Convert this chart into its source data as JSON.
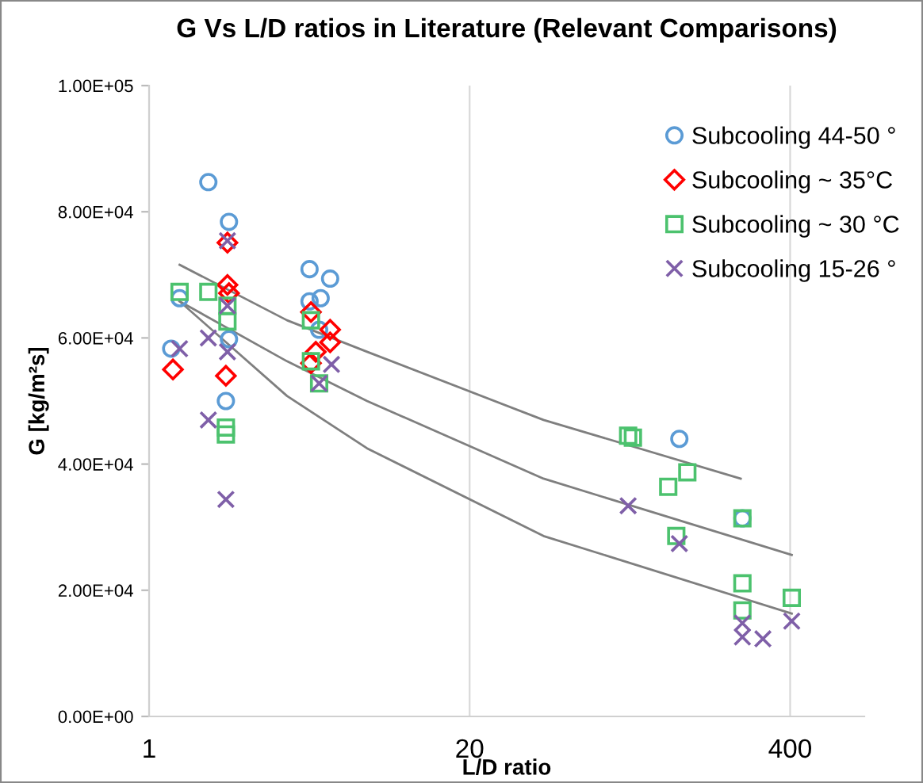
{
  "chart_data": {
    "type": "scatter",
    "title": "G Vs L/D ratios in Literature (Relevant Comparisons)",
    "xlabel": "L/D ratio",
    "ylabel": "G [kg/m²s]",
    "log": "x",
    "grid": "x",
    "legend": "top right",
    "xlim": [
      1,
      800
    ],
    "xticks": [
      1,
      20,
      400
    ],
    "ylim": [
      0,
      100000
    ],
    "yticks": [
      {
        "value": 0,
        "label": "0.00E+00"
      },
      {
        "value": 20000,
        "label": "2.00E+04"
      },
      {
        "value": 40000,
        "label": "4.00E+04"
      },
      {
        "value": 60000,
        "label": "6.00E+04"
      },
      {
        "value": 80000,
        "label": "8.00E+04"
      },
      {
        "value": 100000,
        "label": "1.00E+05"
      }
    ],
    "series": [
      {
        "name": "Subcooling 44-50 °",
        "color": "#5b9bd5",
        "marker": "circle",
        "x": [
          1.74,
          2.11,
          1.33,
          1.23,
          2.11,
          2.05,
          4.48,
          5.43,
          4.48,
          4.97,
          4.9,
          142,
          256
        ],
        "values": [
          84700,
          78400,
          66300,
          58300,
          59800,
          50000,
          70900,
          69400,
          65800,
          66300,
          61300,
          44000,
          31400
        ]
      },
      {
        "name": "Subcooling ~ 35°C",
        "color": "#ff0000",
        "marker": "diamond",
        "x": [
          1.25,
          2.08,
          2.08,
          2.11,
          2.05,
          4.54,
          5.43,
          5.43,
          4.75,
          4.54
        ],
        "values": [
          55000,
          75100,
          68400,
          67100,
          54000,
          64100,
          61300,
          59300,
          57800,
          56000
        ]
      },
      {
        "name": "Subcooling ~ 30 °C",
        "color": "#4cc26e",
        "marker": "square",
        "x": [
          1.33,
          1.74,
          2.08,
          2.08,
          2.05,
          2.05,
          4.54,
          4.54,
          4.9,
          88,
          92,
          128,
          153,
          138,
          256,
          256,
          256,
          406
        ],
        "values": [
          67300,
          67300,
          65100,
          62600,
          45800,
          44700,
          62800,
          56300,
          52800,
          44500,
          44200,
          36400,
          38700,
          28600,
          31400,
          21100,
          16800,
          18800
        ]
      },
      {
        "name": "Subcooling 15-26 °",
        "color": "#7f5fa8",
        "marker": "cross",
        "x": [
          1.33,
          1.74,
          2.08,
          2.08,
          2.08,
          1.74,
          2.05,
          4.9,
          5.5,
          88,
          142,
          256,
          256,
          310,
          406
        ],
        "values": [
          58300,
          60000,
          75400,
          65100,
          57800,
          47000,
          34400,
          52800,
          55800,
          33400,
          27400,
          14800,
          12600,
          12300,
          15100
        ]
      },
      {
        "type": "line",
        "color": "#7f7f7f",
        "marker": "none",
        "x": [
          1.33,
          3.63,
          7.67,
          39.9,
          252
        ],
        "values": [
          71600,
          62800,
          57800,
          47000,
          37700
        ]
      },
      {
        "type": "line",
        "color": "#7f7f7f",
        "marker": "none",
        "x": [
          1.33,
          3.63,
          7.67,
          39.9,
          406
        ],
        "values": [
          65800,
          56300,
          50000,
          37700,
          25600
        ]
      },
      {
        "type": "line",
        "color": "#7f7f7f",
        "marker": "none",
        "x": [
          1.33,
          3.63,
          7.67,
          39.9,
          406
        ],
        "values": [
          65800,
          50800,
          42500,
          28600,
          16300
        ]
      }
    ]
  }
}
